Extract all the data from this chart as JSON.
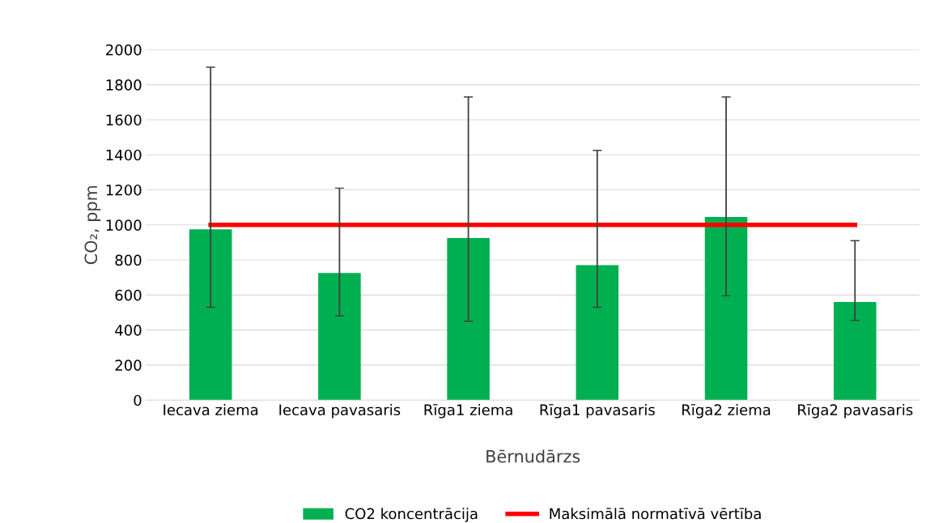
{
  "chart_data": {
    "type": "bar",
    "xlabel": "Bērnudārzs",
    "ylabel": "CO₂, ppm",
    "categories": [
      "Iecava ziema",
      "Iecava pavasaris",
      "Rīga1 ziema",
      "Rīga1 pavasaris",
      "Rīga2 ziema",
      "Rīga2 pavasaris"
    ],
    "series": [
      {
        "name": "CO2 koncentrācija",
        "color": "#00b050",
        "values": [
          975,
          725,
          925,
          770,
          1045,
          560
        ],
        "errors": [
          [
            530,
            1900
          ],
          [
            480,
            1210
          ],
          [
            450,
            1730
          ],
          [
            530,
            1425
          ],
          [
            595,
            1730
          ],
          [
            455,
            910
          ]
        ]
      },
      {
        "name": "Maksimālā normatīvā vērtība",
        "type": "line",
        "color": "#ff0000",
        "values": [
          1000,
          1000,
          1000,
          1000,
          1000,
          1000
        ]
      }
    ],
    "ylim": [
      0,
      2000
    ],
    "yticks": [
      0,
      200,
      400,
      600,
      800,
      1000,
      1200,
      1400,
      1600,
      1800,
      2000
    ],
    "grid": "y",
    "legend": "bottom"
  }
}
